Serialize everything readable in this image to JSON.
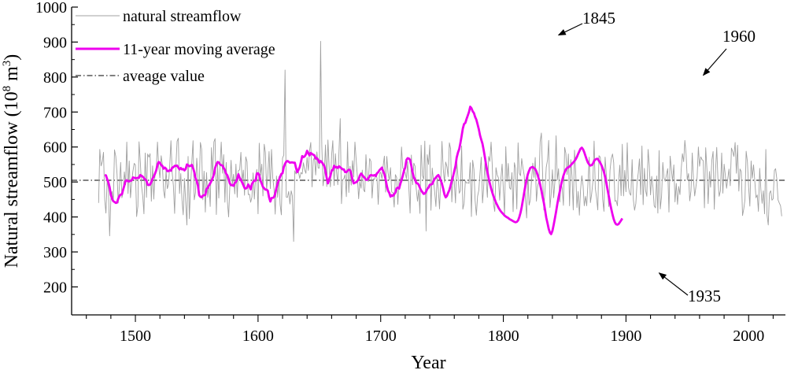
{
  "chart_data": {
    "type": "line",
    "title": "",
    "xlabel": "Year",
    "ylabel": "Natural streamflow (10",
    "ylabel_sup": "8",
    "ylabel_unit": " m",
    "ylabel_sup2": "3",
    "ylabel_close": ")",
    "xlim": [
      1448,
      2030
    ],
    "ylim": [
      120,
      1000
    ],
    "x_ticks": [
      1500,
      1600,
      1700,
      1800,
      1900,
      2000
    ],
    "y_ticks": [
      200,
      300,
      400,
      500,
      600,
      700,
      800,
      900,
      1000
    ],
    "average_value": 505,
    "legend": {
      "placement": "top-left",
      "entries": [
        {
          "label": "natural streamflow",
          "color": "#a0a0a0",
          "style": "solid"
        },
        {
          "label": "11-year moving average",
          "color": "#ee00ee",
          "style": "solid"
        },
        {
          "label": "aveage value",
          "color": "#000000",
          "style": "dashdot"
        }
      ]
    },
    "series": [
      {
        "name": "natural streamflow",
        "color": "#a0a0a0",
        "start_year": 1470,
        "values": [
          440,
          593,
          546,
          558,
          585,
          448,
          411,
          505,
          480,
          346,
          452,
          473,
          446,
          592,
          573,
          523,
          440,
          491,
          556,
          455,
          470,
          529,
          492,
          614,
          467,
          560,
          455,
          501,
          531,
          553,
          549,
          401,
          431,
          615,
          558,
          489,
          459,
          409,
          583,
          456,
          580,
          571,
          581,
          445,
          546,
          451,
          524,
          534,
          614,
          546,
          511,
          575,
          549,
          475,
          454,
          533,
          481,
          493,
          548,
          618,
          526,
          489,
          410,
          545,
          616,
          625,
          467,
          524,
          447,
          406,
          510,
          444,
          377,
          573,
          395,
          489,
          555,
          618,
          449,
          470,
          568,
          515,
          479,
          613,
          594,
          449,
          531,
          414,
          527,
          456,
          495,
          430,
          598,
          520,
          615,
          624,
          407,
          551,
          454,
          548,
          614,
          525,
          578,
          442,
          556,
          446,
          400,
          484,
          562,
          492,
          522,
          466,
          551,
          456,
          532,
          535,
          585,
          499,
          534,
          462,
          572,
          558,
          464,
          465,
          442,
          457,
          526,
          451,
          514,
          536,
          409,
          611,
          519,
          551,
          460,
          608,
          585,
          478,
          520,
          587,
          481,
          593,
          512,
          482,
          408,
          517,
          456,
          515,
          436,
          406,
          568,
          577,
          820,
          457,
          456,
          473,
          437,
          475,
          460,
          330,
          532,
          523,
          531,
          528,
          510,
          527,
          523,
          555,
          535,
          525,
          570,
          533,
          589,
          613,
          486,
          562,
          570,
          520,
          586,
          540,
          540,
          902,
          604,
          489,
          520,
          606,
          487,
          620,
          540,
          486,
          577,
          618,
          490,
          581,
          530,
          492,
          585,
          681,
          438,
          506,
          510,
          521,
          458,
          615,
          470,
          545,
          491,
          561,
          515,
          614,
          562,
          516,
          452,
          501,
          482,
          534,
          478,
          472,
          578,
          510,
          501,
          567,
          559,
          454,
          509,
          507,
          524,
          511,
          436,
          523,
          528,
          509,
          545,
          574,
          471,
          573,
          527,
          505,
          541,
          471,
          470,
          428,
          521,
          513,
          436,
          508,
          506,
          600,
          540,
          533,
          527,
          509,
          558,
          480,
          411,
          577,
          492,
          554,
          545,
          480,
          445,
          478,
          410,
          605,
          519,
          508,
          617,
          360,
          578,
          550,
          606,
          419,
          540,
          506,
          472,
          430,
          513,
          478,
          423,
          508,
          616,
          537,
          499,
          557,
          544,
          515,
          612,
          594,
          443,
          517,
          502,
          440,
          561,
          516,
          468,
          475,
          603,
          422,
          438,
          503,
          497,
          498,
          496,
          555,
          401,
          562,
          536,
          447,
          405,
          459,
          476,
          528,
          571,
          440,
          486,
          554,
          509,
          456,
          573,
          559,
          614,
          546,
          437,
          416,
          541,
          520,
          512,
          448,
          508,
          551,
          477,
          407,
          601,
          501,
          553,
          484,
          479,
          527,
          415,
          555,
          539,
          423,
          612,
          525,
          518,
          567,
          540,
          519,
          453,
          397,
          528,
          434,
          448,
          505,
          554,
          513,
          570,
          445,
          488,
          503,
          615,
          640,
          527,
          420,
          477,
          542,
          563,
          619,
          427,
          465,
          535,
          455,
          499,
          632,
          505,
          538,
          443,
          501,
          482,
          433,
          599,
          582,
          521,
          580,
          432,
          564,
          517,
          420,
          591,
          528,
          427,
          473,
          405,
          478,
          518,
          489,
          432,
          459,
          432,
          496,
          571,
          441,
          466,
          500,
          617,
          483,
          455,
          420,
          575,
          571,
          538,
          450,
          416,
          571,
          518,
          478,
          430,
          533,
          567,
          580,
          555,
          445,
          447,
          432,
          507,
          548,
          461,
          608,
          460,
          533,
          472,
          612,
          486,
          467,
          462,
          564,
          449,
          419,
          438,
          495,
          526,
          566,
          464,
          603,
          435,
          539,
          476,
          459,
          593,
          548,
          463,
          516,
          485,
          432,
          426,
          517,
          411,
          590,
          423,
          459,
          556,
          511,
          502,
          521,
          538,
          414,
          574,
          536,
          502,
          549,
          443,
          496,
          436,
          487,
          464,
          534,
          581,
          558,
          619,
          579,
          506,
          524,
          446,
          475,
          583,
          509,
          460,
          485,
          514,
          600,
          545,
          572,
          564,
          561,
          426,
          598,
          535,
          438,
          530,
          485,
          562,
          587,
          422,
          532,
          599,
          505,
          459,
          475,
          583,
          468,
          551,
          520,
          482,
          510,
          537,
          489,
          597,
          587,
          573,
          613,
          525,
          605,
          474,
          537,
          530,
          404,
          422,
          450,
          588,
          558,
          487,
          431,
          560,
          511,
          549,
          505,
          455,
          463,
          416,
          539,
          479,
          439,
          475,
          409,
          593,
          406,
          377,
          468,
          475,
          448,
          452,
          533,
          538,
          508,
          449,
          440,
          432,
          402
        ]
      },
      {
        "name": "11-year moving average",
        "color": "#ee00ee",
        "start_year": 1475,
        "values": [
          520,
          519,
          508,
          498,
          485,
          463,
          452,
          445,
          443,
          440,
          441,
          452,
          460,
          464,
          465,
          478,
          490,
          503,
          505,
          502,
          502,
          503,
          505,
          513,
          512,
          511,
          511,
          512,
          512,
          520,
          518,
          515,
          511,
          507,
          504,
          492,
          491,
          493,
          500,
          510,
          515,
          524,
          533,
          549,
          557,
          555,
          548,
          546,
          538,
          541,
          538,
          531,
          531,
          534,
          532,
          541,
          542,
          546,
          546,
          547,
          541,
          536,
          540,
          536,
          537,
          533,
          537,
          550,
          548,
          545,
          546,
          549,
          540,
          529,
          512,
          502,
          490,
          462,
          458,
          456,
          461,
          462,
          463,
          480,
          484,
          490,
          496,
          503,
          511,
          522,
          540,
          550,
          557,
          556,
          550,
          548,
          547,
          540,
          534,
          523,
          519,
          508,
          496,
          491,
          491,
          489,
          497,
          500,
          509,
          522,
          512,
          506,
          499,
          491,
          483,
          481,
          484,
          493,
          487,
          479,
          494,
          500,
          504,
          504,
          524,
          525,
          520,
          504,
          495,
          486,
          482,
          478,
          478,
          475,
          456,
          444,
          454,
          455,
          456,
          467,
          483,
          496,
          505,
          515,
          523,
          525,
          543,
          552,
          558,
          560,
          558,
          555,
          556,
          556,
          555,
          555,
          540,
          528,
          535,
          543,
          557,
          574,
          571,
          573,
          579,
          589,
          582,
          576,
          583,
          580,
          578,
          576,
          567,
          568,
          563,
          555,
          560,
          557,
          551,
          546,
          531,
          511,
          496,
          508,
          517,
          533,
          534,
          546,
          542,
          543,
          540,
          545,
          542,
          539,
          536,
          536,
          528,
          528,
          532,
          535,
          534,
          524,
          506,
          496,
          498,
          499,
          503,
          507,
          518,
          524,
          520,
          515,
          512,
          506,
          506,
          510,
          517,
          520,
          519,
          518,
          520,
          517,
          525,
          528,
          534,
          537,
          541,
          531,
          523,
          507,
          489,
          475,
          469,
          458,
          462,
          460,
          465,
          470,
          482,
          484,
          481,
          495,
          505,
          518,
          532,
          541,
          563,
          568,
          567,
          563,
          546,
          528,
          513,
          507,
          497,
          496,
          492,
          483,
          476,
          471,
          466,
          467,
          472,
          480,
          484,
          492,
          493,
          494,
          502,
          509,
          513,
          517,
          520,
          513,
          504,
          495,
          480,
          464,
          456,
          460,
          469,
          477,
          490,
          504,
          516,
          531,
          546,
          570,
          584,
          594,
          611,
          632,
          653,
          666,
          669,
          680,
          690,
          700,
          715,
          711,
          702,
          697,
          686,
          678,
          665,
          651,
          633,
          621,
          609,
          591,
          570,
          548,
          530,
          510,
          496,
          482,
          470,
          459,
          450,
          441,
          434,
          427,
          421,
          416,
          412,
          408,
          404,
          401,
          399,
          397,
          394,
          392,
          390,
          388,
          386,
          385,
          386,
          390,
          399,
          412,
          428,
          449,
          470,
          490,
          508,
          522,
          532,
          540,
          542,
          543,
          540,
          537,
          530,
          520,
          507,
          493,
          476,
          458,
          441,
          421,
          398,
          382,
          366,
          355,
          351,
          360,
          377,
          395,
          415,
          436,
          456,
          473,
          490,
          505,
          518,
          528,
          536,
          540,
          542,
          544,
          548,
          552,
          556,
          560,
          565,
          572,
          580,
          588,
          595,
          598,
          593,
          585,
          574,
          564,
          555,
          550,
          547,
          548,
          552,
          560,
          564,
          566,
          566,
          560,
          555,
          548,
          539,
          528,
          514,
          497,
          478,
          459,
          440,
          423,
          407,
          394,
          384,
          379,
          378,
          380,
          385,
          390,
          396
        ]
      }
    ],
    "annotations": [
      {
        "label": "1845",
        "target_year": 1845,
        "target_value": 920
      },
      {
        "label": "1960",
        "target_year": 1963,
        "target_value": 805
      },
      {
        "label": "1935",
        "target_year": 1927,
        "target_value": 240
      }
    ]
  }
}
